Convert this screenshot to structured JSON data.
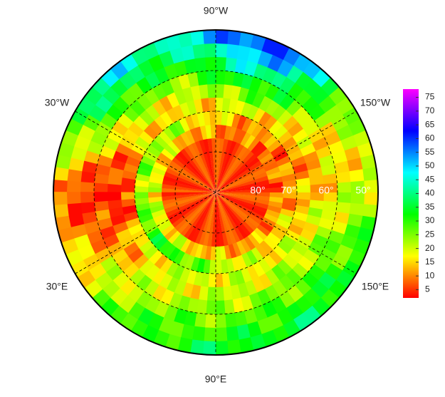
{
  "map": {
    "longitude_labels": [
      "90°W",
      "150°W",
      "150°E",
      "90°E",
      "30°E",
      "30°W"
    ],
    "latitude_labels": [
      "80°",
      "70°",
      "60°",
      "50°"
    ],
    "colorbar": {
      "limits": [
        2,
        78
      ],
      "ticks": [
        5,
        10,
        15,
        20,
        25,
        30,
        35,
        40,
        45,
        50,
        55,
        60,
        65,
        70,
        75
      ]
    }
  }
}
